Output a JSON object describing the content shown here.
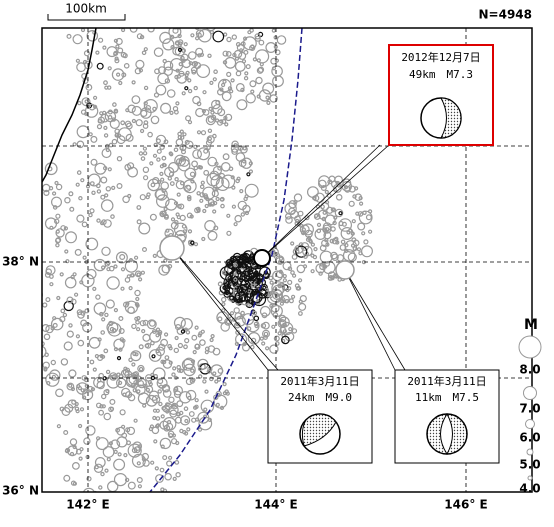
{
  "header": {
    "scale_label": "100km",
    "count": "N=4948"
  },
  "axes": {
    "lat_labels": [
      "38° N",
      "36° N"
    ],
    "lon_labels": [
      "142° E",
      "144° E",
      "146° E"
    ]
  },
  "legend": {
    "title": "M",
    "items": [
      "8.0",
      "7.0",
      "6.0",
      "5.0",
      "4.0"
    ]
  },
  "callouts": [
    {
      "date": "2012年12月7日",
      "detail": "49km　M7.3"
    },
    {
      "date": "2011年3月11日",
      "detail": "24km　M9.0"
    },
    {
      "date": "2011年3月11日",
      "detail": "11km　M7.5"
    }
  ]
}
